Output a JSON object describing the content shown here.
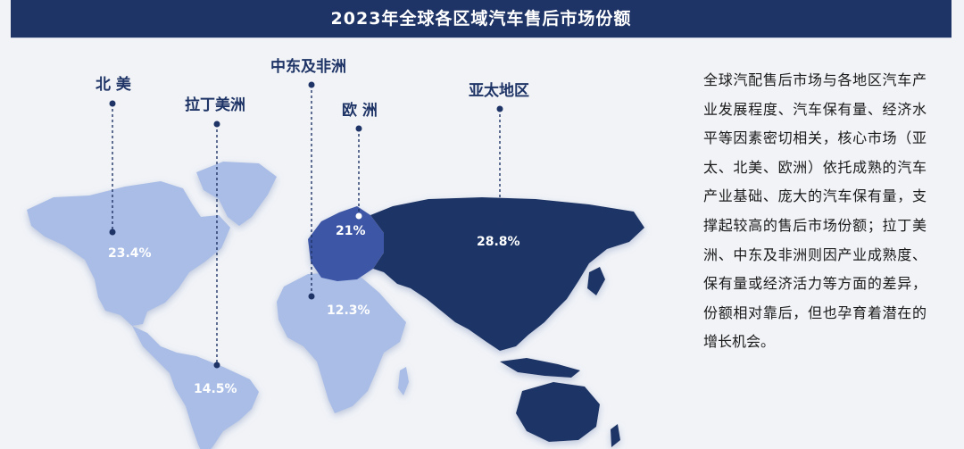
{
  "header": {
    "title": "2023年全球各区域汽车售后市场份额"
  },
  "colors": {
    "header_bg": "#1f3466",
    "light_region": "#a9bde6",
    "mid_region": "#3d56a6",
    "dark_region": "#1f3466",
    "label": "#1f3466"
  },
  "chart_data": {
    "type": "map",
    "title": "2023年全球各区域汽车售后市场份额",
    "unit": "%",
    "regions": [
      {
        "name": "北 美",
        "value": 23.4,
        "value_label": "23.4%"
      },
      {
        "name": "拉丁美洲",
        "value": 14.5,
        "value_label": "14.5%"
      },
      {
        "name": "中东及非洲",
        "value": 12.3,
        "value_label": "12.3%"
      },
      {
        "name": "欧 洲",
        "value": 21,
        "value_label": "21%"
      },
      {
        "name": "亚太地区",
        "value": 28.8,
        "value_label": "28.8%"
      }
    ]
  },
  "description": "全球汽配售后市场与各地区汽车产业发展程度、汽车保有量、经济水平等因素密切相关，核心市场（亚太、北美、欧洲）依托成熟的汽车产业基础、庞大的汽车保有量，支撑起较高的售后市场份额；拉丁美洲、中东及非洲则因产业成熟度、保有量或经济活力等方面的差异，份额相对靠后，但也孕育着潜在的增长机会。"
}
